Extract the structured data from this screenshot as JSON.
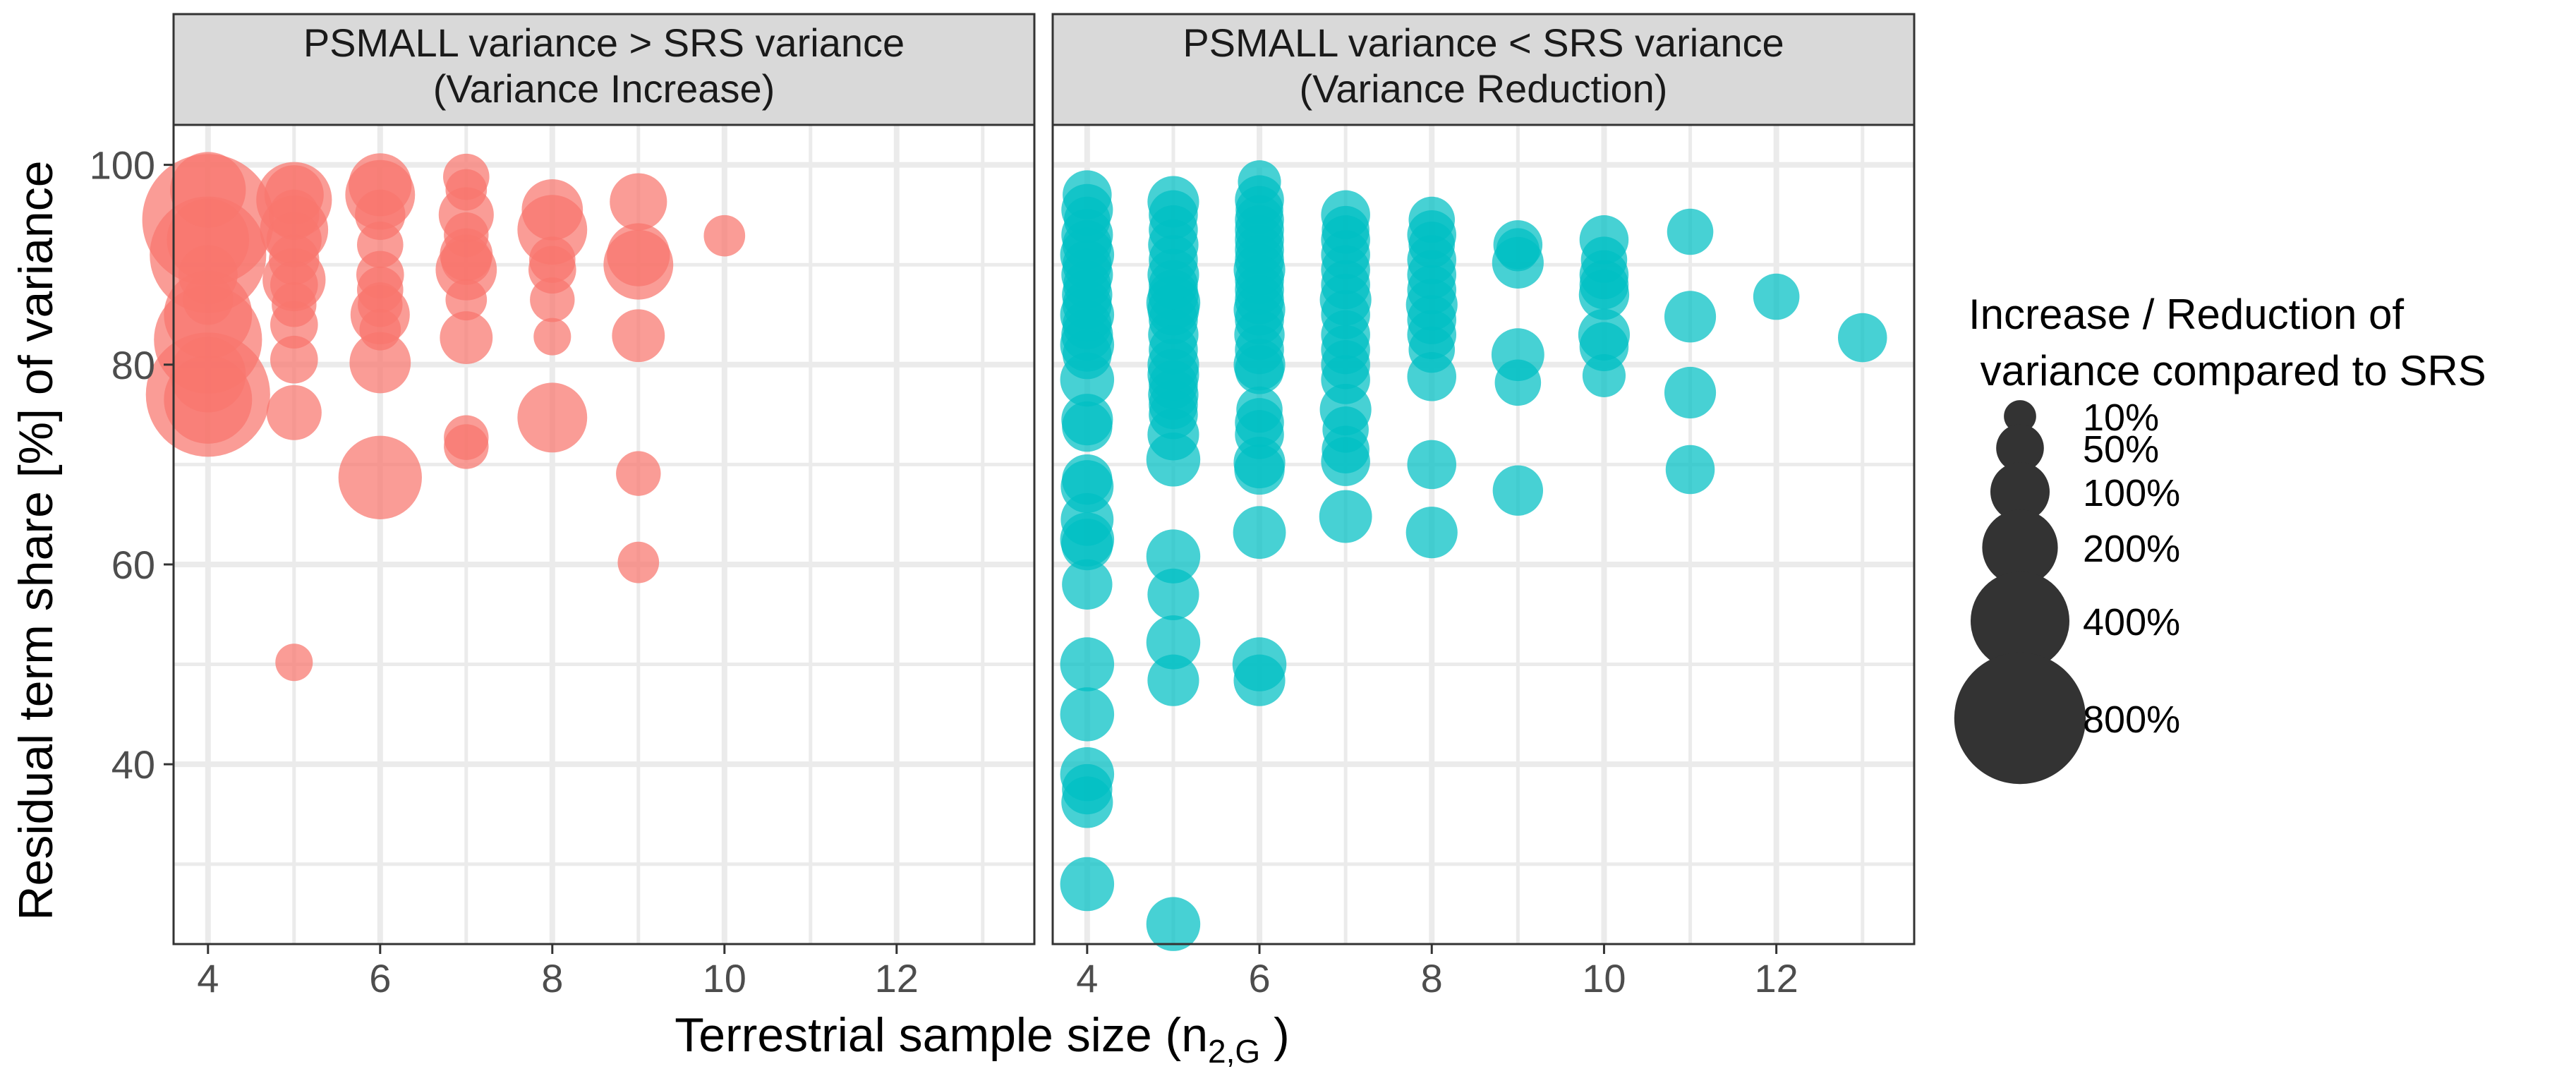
{
  "chart_data": {
    "type": "scatter",
    "title": "",
    "xlabel": {
      "main": "Terrestrial sample size (n",
      "sub": "2,G",
      "close": " )"
    },
    "ylabel": "Residual term share [%] of variance",
    "xlim": [
      3.6,
      13.6
    ],
    "ylim": [
      22,
      104
    ],
    "xticks": [
      "4",
      "6",
      "8",
      "10",
      "12"
    ],
    "yticks": [
      "40",
      "60",
      "80",
      "100"
    ],
    "colors": {
      "increase": "#F8766D",
      "reduction": "#00BFC4",
      "legend_point": "#333333",
      "strip": "#D9D9D9",
      "grid": "#EBEBEB"
    },
    "panels": [
      {
        "id": "increase",
        "strip": [
          "PSMALL variance > SRS variance",
          "(Variance Increase)"
        ],
        "points": [
          [
            4,
            94.5,
            800
          ],
          [
            4,
            91,
            600
          ],
          [
            4,
            97.5,
            200
          ],
          [
            4,
            92.5,
            250
          ],
          [
            4,
            89,
            100
          ],
          [
            4,
            86.5,
            60
          ],
          [
            4,
            85,
            300
          ],
          [
            4,
            82.5,
            500
          ],
          [
            4,
            79,
            200
          ],
          [
            4,
            77,
            700
          ],
          [
            4,
            76.5,
            300
          ],
          [
            5,
            96.5,
            200
          ],
          [
            5,
            97,
            100
          ],
          [
            5,
            95,
            60
          ],
          [
            5,
            93.5,
            150
          ],
          [
            5,
            92.5,
            80
          ],
          [
            5,
            90.5,
            60
          ],
          [
            5,
            88.5,
            120
          ],
          [
            5,
            88,
            50
          ],
          [
            5,
            86,
            40
          ],
          [
            5,
            84,
            50
          ],
          [
            5,
            80.5,
            50
          ],
          [
            5,
            75.2,
            80
          ],
          [
            5,
            50.2,
            20
          ],
          [
            6,
            98,
            120
          ],
          [
            6,
            97,
            160
          ],
          [
            6,
            95,
            60
          ],
          [
            6,
            92,
            45
          ],
          [
            6,
            89,
            50
          ],
          [
            6,
            87.5,
            45
          ],
          [
            6,
            86,
            40
          ],
          [
            6,
            85,
            100
          ],
          [
            6,
            83.5,
            30
          ],
          [
            6,
            80.2,
            110
          ],
          [
            6,
            68.7,
            260
          ],
          [
            7,
            98.8,
            45
          ],
          [
            7,
            97.5,
            30
          ],
          [
            7,
            95,
            80
          ],
          [
            7,
            93,
            40
          ],
          [
            7,
            91,
            70
          ],
          [
            7,
            90.5,
            60
          ],
          [
            7,
            89.5,
            110
          ],
          [
            7,
            86.5,
            30
          ],
          [
            7,
            82.7,
            70
          ],
          [
            7,
            72.7,
            40
          ],
          [
            7,
            71.8,
            40
          ],
          [
            8,
            95.5,
            110
          ],
          [
            8,
            93.5,
            160
          ],
          [
            8,
            90.5,
            45
          ],
          [
            8,
            89.5,
            50
          ],
          [
            8,
            86.5,
            40
          ],
          [
            8,
            82.8,
            20
          ],
          [
            8,
            74.7,
            160
          ],
          [
            9,
            96.3,
            90
          ],
          [
            9,
            91,
            120
          ],
          [
            9,
            90,
            160
          ],
          [
            9,
            82.9,
            70
          ],
          [
            9,
            69.1,
            40
          ],
          [
            9,
            60.2,
            30
          ],
          [
            10,
            92.9,
            30
          ]
        ]
      },
      {
        "id": "reduction",
        "strip": [
          "PSMALL variance < SRS variance",
          "(Variance Reduction)"
        ],
        "points": [
          [
            4,
            97,
            55
          ],
          [
            4,
            95.5,
            65
          ],
          [
            4,
            94.5,
            45
          ],
          [
            4,
            93,
            65
          ],
          [
            4,
            92,
            55
          ],
          [
            4,
            91,
            75
          ],
          [
            4,
            90,
            55
          ],
          [
            4,
            89,
            65
          ],
          [
            4,
            88,
            50
          ],
          [
            4,
            87,
            60
          ],
          [
            4,
            86,
            55
          ],
          [
            4,
            85,
            75
          ],
          [
            4,
            84,
            55
          ],
          [
            4,
            83,
            65
          ],
          [
            4,
            82,
            75
          ],
          [
            4,
            81,
            55
          ],
          [
            4,
            78.5,
            75
          ],
          [
            4,
            74.5,
            65
          ],
          [
            4,
            73.8,
            60
          ],
          [
            4,
            68.5,
            60
          ],
          [
            4,
            67.8,
            70
          ],
          [
            4,
            64.5,
            70
          ],
          [
            4,
            62.5,
            75
          ],
          [
            4,
            62,
            65
          ],
          [
            4,
            58,
            60
          ],
          [
            4,
            50,
            75
          ],
          [
            4,
            45,
            75
          ],
          [
            4,
            39,
            75
          ],
          [
            4,
            37.5,
            60
          ],
          [
            4,
            36.2,
            65
          ],
          [
            4,
            28,
            75
          ],
          [
            5,
            96.3,
            65
          ],
          [
            5,
            95,
            55
          ],
          [
            5,
            93.5,
            55
          ],
          [
            5,
            92,
            60
          ],
          [
            5,
            90.5,
            55
          ],
          [
            5,
            89,
            65
          ],
          [
            5,
            88,
            55
          ],
          [
            5,
            87,
            60
          ],
          [
            5,
            86.2,
            75
          ],
          [
            5,
            85.5,
            65
          ],
          [
            5,
            84.5,
            55
          ],
          [
            5,
            83,
            60
          ],
          [
            5,
            81.5,
            55
          ],
          [
            5,
            80,
            65
          ],
          [
            5,
            79,
            65
          ],
          [
            5,
            78,
            55
          ],
          [
            5,
            77,
            60
          ],
          [
            5,
            76,
            55
          ],
          [
            5,
            75,
            55
          ],
          [
            5,
            73,
            65
          ],
          [
            5,
            70.5,
            75
          ],
          [
            5,
            60.8,
            75
          ],
          [
            5,
            57,
            65
          ],
          [
            5,
            52.2,
            75
          ],
          [
            5,
            48.4,
            65
          ],
          [
            5,
            24,
            75
          ],
          [
            6,
            98.3,
            35
          ],
          [
            6,
            96.5,
            55
          ],
          [
            6,
            95.5,
            50
          ],
          [
            6,
            94.5,
            55
          ],
          [
            6,
            93.5,
            55
          ],
          [
            6,
            92.5,
            55
          ],
          [
            6,
            91.5,
            55
          ],
          [
            6,
            90.5,
            55
          ],
          [
            6,
            89.5,
            65
          ],
          [
            6,
            88.5,
            55
          ],
          [
            6,
            87.5,
            55
          ],
          [
            6,
            86.5,
            55
          ],
          [
            6,
            85.5,
            65
          ],
          [
            6,
            84.5,
            55
          ],
          [
            6,
            83,
            60
          ],
          [
            6,
            81.5,
            55
          ],
          [
            6,
            80,
            65
          ],
          [
            6,
            79.5,
            55
          ],
          [
            6,
            75.5,
            45
          ],
          [
            6,
            74.2,
            55
          ],
          [
            6,
            73,
            55
          ],
          [
            6,
            70.2,
            65
          ],
          [
            6,
            69.5,
            60
          ],
          [
            6,
            63.2,
            70
          ],
          [
            6,
            50,
            75
          ],
          [
            6,
            48.4,
            65
          ],
          [
            7,
            95,
            55
          ],
          [
            7,
            93.5,
            50
          ],
          [
            7,
            92.5,
            55
          ],
          [
            7,
            91,
            55
          ],
          [
            7,
            89.5,
            55
          ],
          [
            7,
            88,
            55
          ],
          [
            7,
            86.5,
            65
          ],
          [
            7,
            85,
            55
          ],
          [
            7,
            83,
            55
          ],
          [
            7,
            81.5,
            55
          ],
          [
            7,
            80,
            55
          ],
          [
            7,
            78.5,
            55
          ],
          [
            7,
            75.5,
            65
          ],
          [
            7,
            73.5,
            45
          ],
          [
            7,
            71.5,
            50
          ],
          [
            7,
            70.3,
            55
          ],
          [
            7,
            64.8,
            70
          ],
          [
            8,
            94.5,
            45
          ],
          [
            8,
            93,
            55
          ],
          [
            8,
            92,
            45
          ],
          [
            8,
            90.5,
            55
          ],
          [
            8,
            89,
            55
          ],
          [
            8,
            87.5,
            55
          ],
          [
            8,
            86,
            65
          ],
          [
            8,
            84.5,
            55
          ],
          [
            8,
            83,
            55
          ],
          [
            8,
            81.5,
            45
          ],
          [
            8,
            78.8,
            55
          ],
          [
            8,
            70,
            55
          ],
          [
            8,
            63.2,
            65
          ],
          [
            9,
            92,
            55
          ],
          [
            9,
            91.5,
            35
          ],
          [
            9,
            90.2,
            65
          ],
          [
            9,
            81,
            70
          ],
          [
            9,
            78.2,
            45
          ],
          [
            9,
            67.4,
            60
          ],
          [
            10,
            92.5,
            55
          ],
          [
            10,
            90.5,
            45
          ],
          [
            10,
            89,
            55
          ],
          [
            10,
            88,
            55
          ],
          [
            10,
            87,
            60
          ],
          [
            10,
            83,
            65
          ],
          [
            10,
            81.8,
            55
          ],
          [
            10,
            78.9,
            35
          ],
          [
            11,
            93.3,
            45
          ],
          [
            11,
            84.8,
            65
          ],
          [
            11,
            77.2,
            65
          ],
          [
            11,
            69.5,
            55
          ],
          [
            12,
            86.8,
            45
          ],
          [
            13,
            82.7,
            55
          ]
        ]
      }
    ],
    "legend": {
      "title": [
        "Increase / Reduction of",
        " variance compared to SRS"
      ],
      "entries": [
        {
          "label": "10%",
          "value": 10
        },
        {
          "label": "50%",
          "value": 50
        },
        {
          "label": "100%",
          "value": 100
        },
        {
          "label": "200%",
          "value": 200
        },
        {
          "label": "400%",
          "value": 400
        },
        {
          "label": "800%",
          "value": 800
        }
      ]
    }
  }
}
